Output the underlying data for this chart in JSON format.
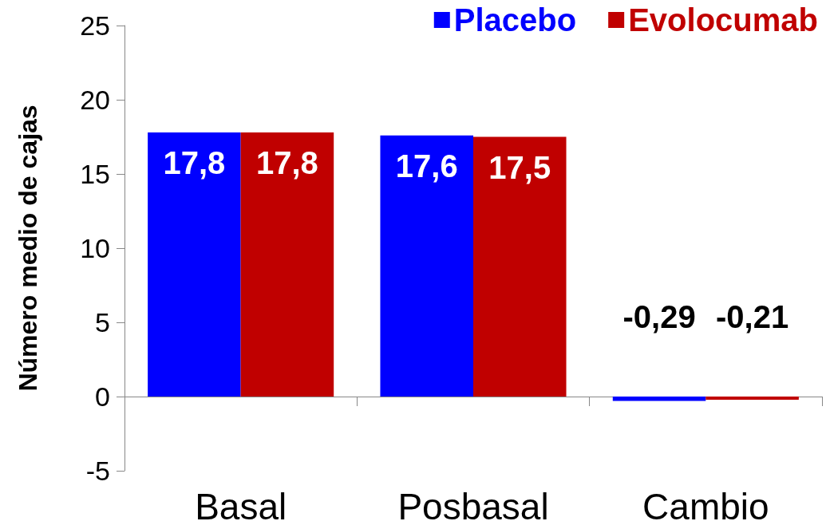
{
  "chart_data": {
    "type": "bar",
    "ylabel": "Número medio de cajas",
    "categories": [
      "Basal",
      "Posbasal",
      "Cambio"
    ],
    "series": [
      {
        "name": "Placebo",
        "color": "#0000ff",
        "values": [
          17.8,
          17.6,
          -0.29
        ],
        "value_labels": [
          "17,8",
          "17,6",
          "-0,29"
        ]
      },
      {
        "name": "Evolocumab",
        "color": "#c00000",
        "values": [
          17.8,
          17.5,
          -0.21
        ],
        "value_labels": [
          "17,8",
          "17,5",
          "-0,21"
        ]
      }
    ],
    "ylim": [
      -5,
      25
    ],
    "yticks": [
      -5,
      0,
      5,
      10,
      15,
      20,
      25
    ],
    "legend": "top right",
    "grid": false
  }
}
